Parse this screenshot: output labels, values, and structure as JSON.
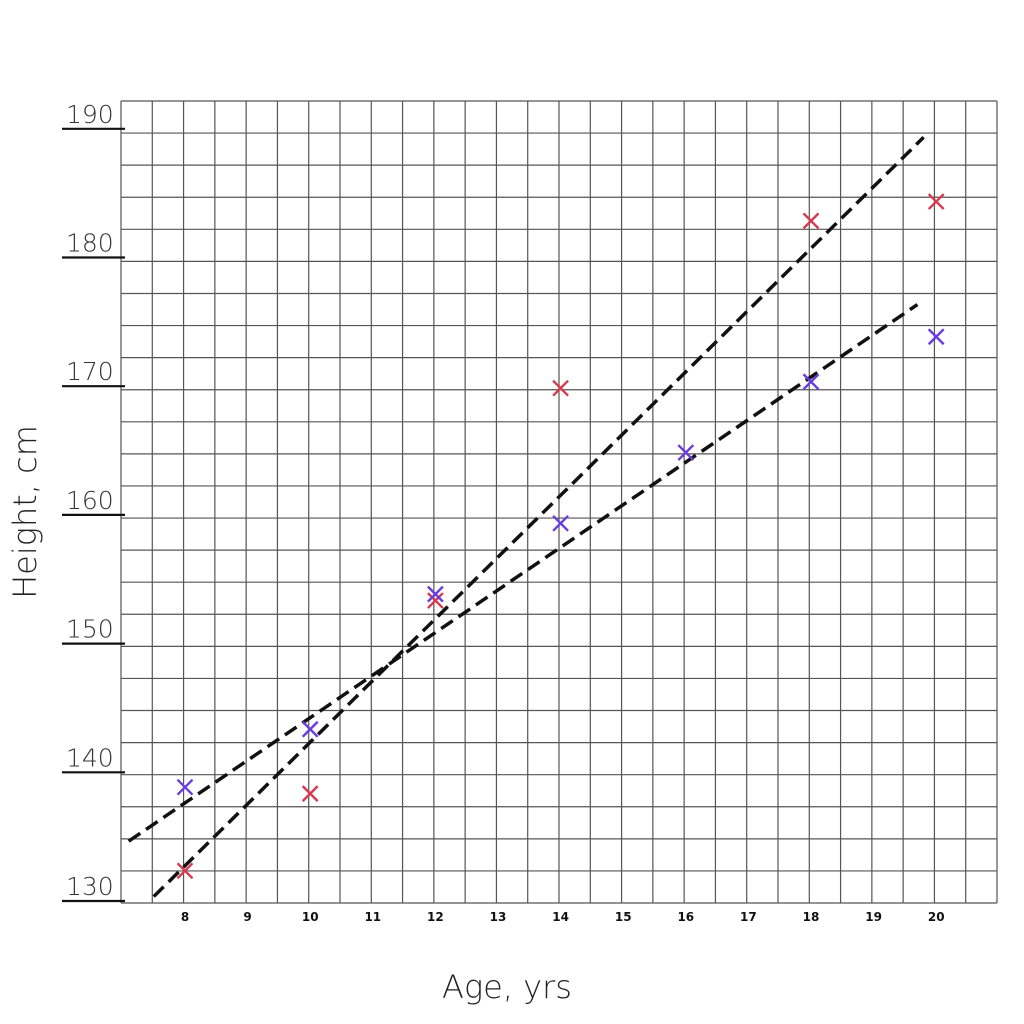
{
  "chart_data": {
    "type": "scatter",
    "xlabel": "Age, yrs",
    "ylabel": "Height, cm",
    "xlim": [
      7,
      21
    ],
    "ylim": [
      130,
      191
    ],
    "xticks": [
      "8",
      "9",
      "10",
      "11",
      "12",
      "13",
      "14",
      "15",
      "16",
      "17",
      "18",
      "19",
      "20"
    ],
    "yticks": [
      "130",
      "140",
      "150",
      "160",
      "170",
      "180",
      "190"
    ],
    "grid": true,
    "series": [
      {
        "color": "#d63a4e",
        "marker": "x",
        "points": [
          {
            "x": 8,
            "y": 132.5
          },
          {
            "x": 10,
            "y": 138.5
          },
          {
            "x": 12,
            "y": 153.5
          },
          {
            "x": 14,
            "y": 170
          },
          {
            "x": 18,
            "y": 183
          },
          {
            "x": 20,
            "y": 184.5
          }
        ]
      },
      {
        "color": "#6a3ce0",
        "marker": "x",
        "points": [
          {
            "x": 8,
            "y": 139
          },
          {
            "x": 10,
            "y": 143.5
          },
          {
            "x": 12,
            "y": 154
          },
          {
            "x": 14,
            "y": 159.5
          },
          {
            "x": 16,
            "y": 165
          },
          {
            "x": 18,
            "y": 170.5
          },
          {
            "x": 20,
            "y": 174
          }
        ]
      }
    ],
    "trend_lines": [
      {
        "style": "dashed",
        "color": "#111111",
        "x": [
          7.5,
          19.8
        ],
        "y": [
          130.5,
          189.5
        ]
      },
      {
        "style": "dashed",
        "color": "#111111",
        "x": [
          7.1,
          19.7
        ],
        "y": [
          134.8,
          176.5
        ]
      }
    ]
  }
}
